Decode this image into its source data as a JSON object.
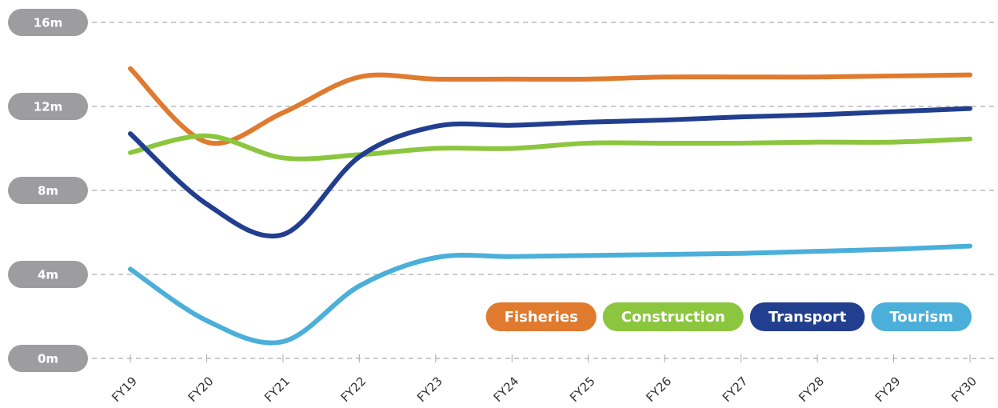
{
  "chart_data": {
    "type": "line",
    "categories": [
      "FY19",
      "FY20",
      "FY21",
      "FY22",
      "FY23",
      "FY24",
      "FY25",
      "FY26",
      "FY27",
      "FY28",
      "FY29",
      "FY30"
    ],
    "series": [
      {
        "name": "Fisheries",
        "color": "#e07a2e",
        "values": [
          13.8,
          10.3,
          11.7,
          13.4,
          13.3,
          13.3,
          13.3,
          13.4,
          13.4,
          13.4,
          13.45,
          13.5
        ]
      },
      {
        "name": "Construction",
        "color": "#8cc63f",
        "values": [
          9.8,
          10.6,
          9.55,
          9.7,
          10.0,
          10.0,
          10.25,
          10.25,
          10.25,
          10.3,
          10.3,
          10.45
        ]
      },
      {
        "name": "Transport",
        "color": "#223f8f",
        "values": [
          10.7,
          7.35,
          5.9,
          9.6,
          11.05,
          11.1,
          11.25,
          11.35,
          11.5,
          11.6,
          11.75,
          11.9
        ]
      },
      {
        "name": "Tourism",
        "color": "#4bafd9",
        "values": [
          4.25,
          1.8,
          0.8,
          3.45,
          4.8,
          4.85,
          4.9,
          4.95,
          5.0,
          5.1,
          5.2,
          5.35
        ]
      }
    ],
    "ylim": [
      0,
      16
    ],
    "yticks": [
      {
        "value": 0,
        "label": "0m"
      },
      {
        "value": 4,
        "label": "4m"
      },
      {
        "value": 8,
        "label": "8m"
      },
      {
        "value": 12,
        "label": "12m"
      },
      {
        "value": 16,
        "label": "16m"
      }
    ],
    "grid": true,
    "legend": "lower right"
  }
}
